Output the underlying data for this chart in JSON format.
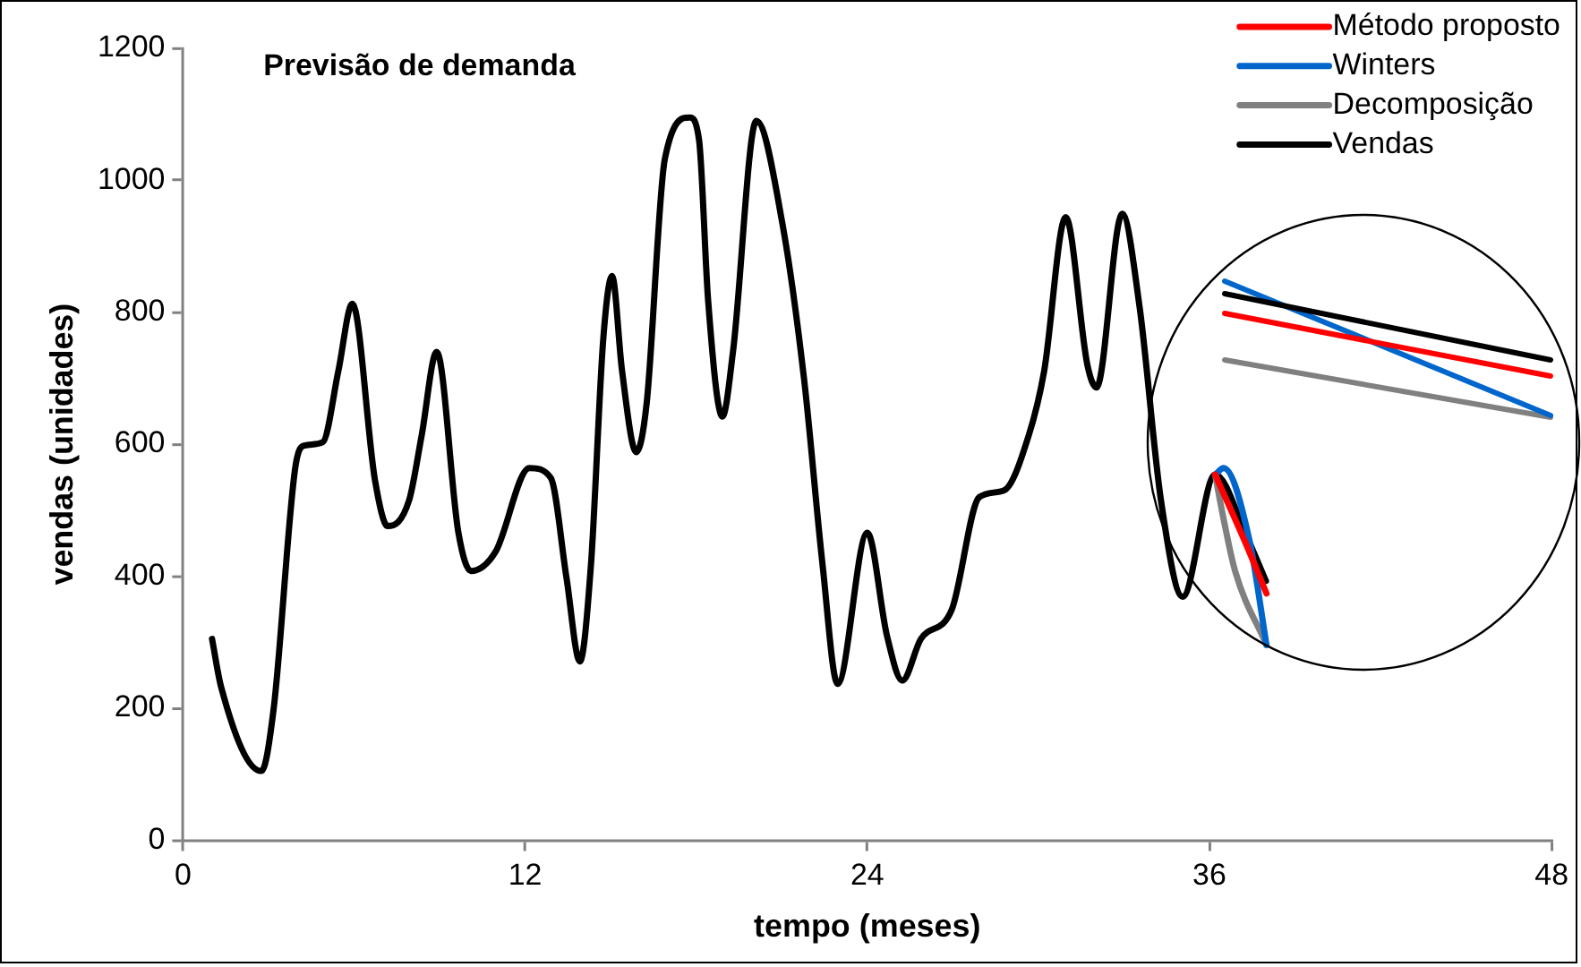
{
  "chart_data": {
    "type": "line",
    "title": "Previsão de demanda",
    "xlabel": "tempo (meses)",
    "ylabel": "vendas (unidades)",
    "xlim": [
      0,
      48
    ],
    "xticks": [
      0,
      12,
      24,
      36,
      48
    ],
    "ylim": [
      0,
      1200
    ],
    "yticks": [
      0,
      200,
      400,
      600,
      800,
      1000,
      1200
    ],
    "grid": false,
    "legend": "top right",
    "marker": "none",
    "line_style": "solid",
    "series": [
      {
        "name": "Método proposto",
        "color": "#ff0000",
        "x": [
          36.2,
          37.3,
          38
        ],
        "values": [
          554,
          447,
          374
        ]
      },
      {
        "name": "Winters",
        "color": "#0066cc",
        "x": [
          36.2,
          36.5,
          37.4,
          38
        ],
        "values": [
          554,
          564,
          455,
          296
        ]
      },
      {
        "name": "Decomposição",
        "color": "#808080",
        "x": [
          36.2,
          36.5,
          36.9,
          38
        ],
        "values": [
          554,
          486,
          408,
          296
        ]
      },
      {
        "name": "Vendas",
        "color": "#000000",
        "x": [
          1.02,
          1.34,
          2.75,
          3.18,
          3.94,
          4.26,
          4.9,
          5.45,
          5.94,
          6.74,
          7.18,
          7.93,
          8.37,
          8.9,
          9.66,
          10.1,
          10.96,
          12.15,
          12.9,
          13.45,
          13.92,
          14.31,
          14.74,
          15.05,
          15.4,
          15.9,
          16.26,
          16.9,
          17.77,
          18.1,
          18.42,
          18.92,
          19.29,
          20.11,
          21.02,
          21.78,
          22.43,
          22.96,
          24.0,
          24.69,
          25.23,
          25.88,
          26.96,
          27.93,
          28.79,
          29.66,
          30.2,
          30.96,
          31.72,
          32.04,
          32.94,
          33.55,
          34.3,
          35.06,
          36.2,
          37.3,
          37.98
        ],
        "values": [
          305,
          232,
          105,
          199,
          565,
          598,
          603,
          711,
          813,
          544,
          476,
          515,
          613,
          740,
          466,
          408,
          437,
          564,
          549,
          398,
          271,
          418,
          759,
          855,
          711,
          588,
          661,
          1032,
          1095,
          1061,
          817,
          642,
          740,
          1090,
          935,
          700,
          418,
          237,
          466,
          310,
          242,
          305,
          349,
          520,
          530,
          613,
          710,
          944,
          720,
          686,
          949,
          808,
          515,
          369,
          554,
          461,
          393
        ]
      }
    ]
  }
}
